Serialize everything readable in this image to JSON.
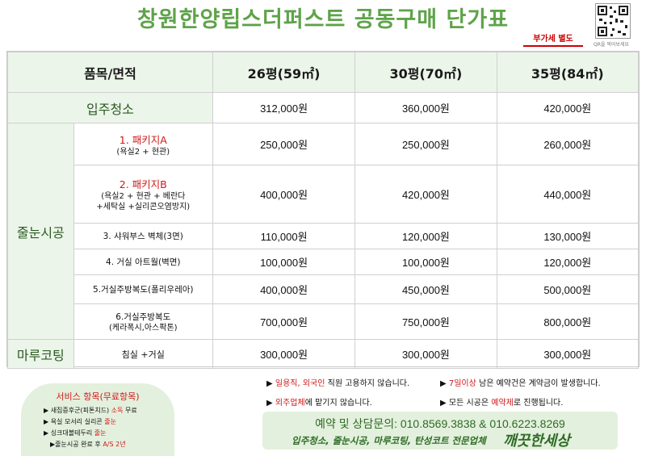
{
  "title": "창원한양립스더퍼스트 공동구매 단가표",
  "qr_caption": "QR을 찍어보세요",
  "vat_badge": "부가세 별도",
  "table": {
    "header": {
      "item": "품목/면적",
      "col1": "26평(59㎡)",
      "col2": "30평(70㎡)",
      "col3": "35평(84㎡)"
    },
    "move_in": {
      "label": "입주청소",
      "prices": [
        "312,000원",
        "360,000원",
        "420,000원"
      ]
    },
    "grout": {
      "label": "줄눈시공",
      "rows": [
        {
          "title": "1. 패키지A",
          "sub": "(욕실2 + 현관)",
          "prices": [
            "250,000원",
            "250,000원",
            "260,000원"
          ]
        },
        {
          "title": "2. 패키지B",
          "sub1": "(욕실2 + 현관 + 베란다",
          "sub2": "+세탁실 +실리콘오염방지)",
          "prices": [
            "400,000원",
            "420,000원",
            "440,000원"
          ]
        },
        {
          "title": "3. 샤워부스 벽체(3면)",
          "prices": [
            "110,000원",
            "120,000원",
            "130,000원"
          ]
        },
        {
          "title": "4. 거실 아트월(벽면)",
          "prices": [
            "100,000원",
            "100,000원",
            "120,000원"
          ]
        },
        {
          "title": "5.거실주방복도(폴리우레아)",
          "prices": [
            "400,000원",
            "450,000원",
            "500,000원"
          ]
        },
        {
          "title": "6.거실주방복도",
          "sub": "(케라폭시,아스팍톤)",
          "prices": [
            "700,000원",
            "750,000원",
            "800,000원"
          ]
        }
      ]
    },
    "floor": {
      "label": "마루코팅",
      "item": "침실 +거실",
      "prices": [
        "300,000원",
        "300,000원",
        "300,000원"
      ]
    }
  },
  "services": {
    "title": "서비스 항목(무료항목)",
    "items": [
      {
        "text": "▶ 새집증후군(피톤치드) ",
        "red": "소독",
        "tail": " 무료"
      },
      {
        "text": "▶ 욕실 모서리 실리콘 ",
        "red": "줄눈",
        "tail": ""
      },
      {
        "text": "▶ 싱크대볼테두리 ",
        "red": "줄눈",
        "tail": ""
      },
      {
        "text": "  ▶줄눈시공 완료 후 ",
        "red": "A/S 2년",
        "tail": ""
      }
    ]
  },
  "notes": {
    "n1_a": "일용직, 외국인",
    "n1_b": " 직원 고용하지 않습니다.",
    "n2_a": "7일이상",
    "n2_b": " 남은 예약건은 계약금이 발생합니다.",
    "n3_a": "외주업체",
    "n3_b": "에 맡기지 않습니다.",
    "n4_a": " 모든 시공은 ",
    "n4_b": "예약제",
    "n4_c": "로 진행됩니다."
  },
  "contact": {
    "line": "예약 및 상담문의: 010.8569.3838 & 010.6223.8269",
    "spec": "입주청소, 줄눈시공, 마루코팅, 탄성코트 전문업체",
    "brand": "깨끗한세상"
  },
  "colors": {
    "title_green": "#5ea34a",
    "header_bg": "#ecf5ea",
    "accent_red": "#d01818",
    "contact_green": "#2e6b25"
  }
}
